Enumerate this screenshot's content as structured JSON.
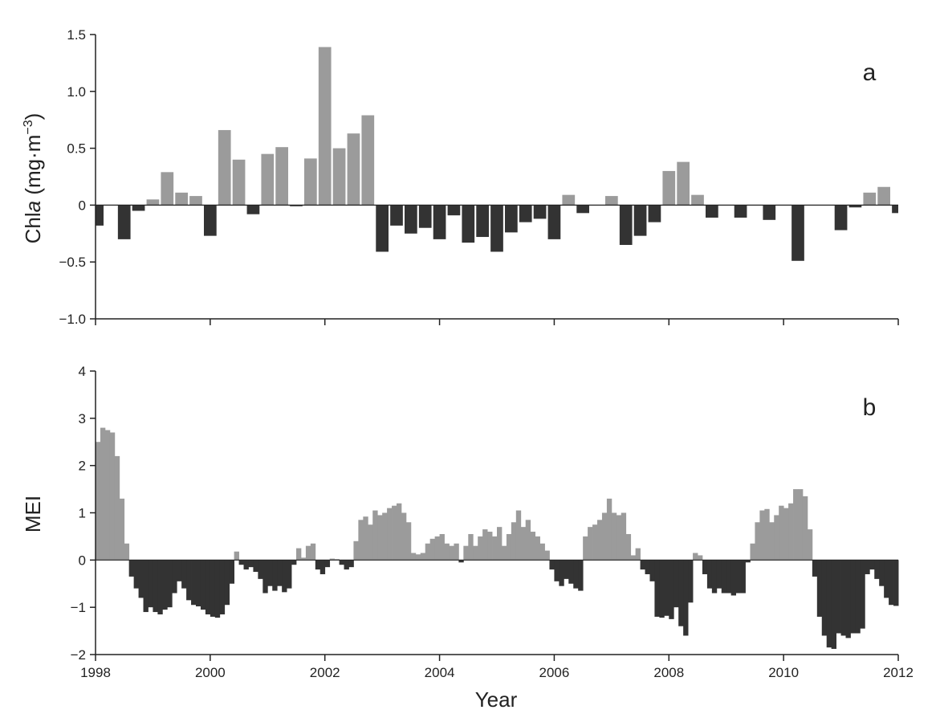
{
  "figure": {
    "xlabel": "Year"
  },
  "colors": {
    "positive": "#9b9b9b",
    "negative": "#333333",
    "axis": "#222222"
  },
  "chart_data": [
    {
      "type": "bar",
      "panel": "a",
      "ylabel": "Chla (mg·m−3)",
      "ylabel_parts": {
        "pre": "Chl",
        "italic": "a",
        "mid": " (mg·m",
        "sup": "−3",
        "post": ")"
      },
      "xlim": [
        1998,
        2012
      ],
      "ylim": [
        -1.0,
        1.5
      ],
      "yticks": [
        -1.0,
        -0.5,
        0,
        0.5,
        1.0,
        1.5
      ],
      "ytick_labels": [
        "−1.0",
        "−0.5",
        "0",
        "0.5",
        "1.0",
        "1.5"
      ],
      "xticks": [
        1998,
        2000,
        2002,
        2004,
        2006,
        2008,
        2010,
        2012
      ],
      "bar_width_years": 0.22,
      "x": [
        1998.03,
        1998.5,
        1998.75,
        1999.0,
        1999.25,
        1999.5,
        1999.75,
        2000.0,
        2000.25,
        2000.5,
        2000.75,
        2001.0,
        2001.25,
        2001.5,
        2001.75,
        2002.0,
        2002.25,
        2002.5,
        2002.75,
        2003.0,
        2003.25,
        2003.5,
        2003.75,
        2004.0,
        2004.25,
        2004.5,
        2004.75,
        2005.0,
        2005.25,
        2005.5,
        2005.75,
        2006.0,
        2006.25,
        2006.5,
        2007.0,
        2007.25,
        2007.5,
        2007.75,
        2008.0,
        2008.25,
        2008.5,
        2008.75,
        2009.25,
        2009.75,
        2010.25,
        2011.0,
        2011.25,
        2011.5,
        2011.75,
        2012.0
      ],
      "values": [
        -0.18,
        -0.3,
        -0.05,
        0.05,
        0.29,
        0.11,
        0.08,
        -0.27,
        0.66,
        0.4,
        -0.08,
        0.45,
        0.51,
        -0.01,
        0.41,
        1.39,
        0.5,
        0.63,
        0.79,
        -0.41,
        -0.18,
        -0.25,
        -0.2,
        -0.3,
        -0.09,
        -0.33,
        -0.28,
        -0.41,
        -0.24,
        -0.15,
        -0.12,
        -0.3,
        0.09,
        -0.07,
        0.08,
        -0.35,
        -0.27,
        -0.15,
        0.3,
        0.38,
        0.09,
        -0.11,
        -0.11,
        -0.13,
        -0.49,
        -0.22,
        -0.02,
        0.11,
        0.16,
        -0.07
      ]
    },
    {
      "type": "bar",
      "panel": "b",
      "ylabel": "MEI",
      "xlabel": "Year",
      "xlim": [
        1998,
        2012
      ],
      "ylim": [
        -2,
        4
      ],
      "yticks": [
        -2,
        -1,
        0,
        1,
        2,
        3,
        4
      ],
      "ytick_labels": [
        "−2",
        "−1",
        "0",
        "1",
        "2",
        "3",
        "4"
      ],
      "xticks": [
        1998,
        2000,
        2002,
        2004,
        2006,
        2008,
        2010,
        2012
      ],
      "xtick_labels": [
        "1998",
        "2000",
        "2002",
        "2004",
        "2006",
        "2008",
        "2010",
        "2012"
      ],
      "x_start": 1998.0,
      "step": 0.0833333,
      "values": [
        2.5,
        2.8,
        2.75,
        2.7,
        2.2,
        1.3,
        0.35,
        -0.35,
        -0.6,
        -0.8,
        -1.1,
        -1.0,
        -1.1,
        -1.15,
        -1.05,
        -1.0,
        -0.7,
        -0.45,
        -0.6,
        -0.85,
        -0.95,
        -0.98,
        -1.05,
        -1.15,
        -1.2,
        -1.22,
        -1.15,
        -0.95,
        -0.5,
        0.18,
        -0.1,
        -0.2,
        -0.15,
        -0.25,
        -0.4,
        -0.7,
        -0.55,
        -0.65,
        -0.55,
        -0.68,
        -0.6,
        -0.1,
        0.25,
        0.05,
        0.3,
        0.35,
        -0.2,
        -0.3,
        -0.15,
        0.03,
        0.02,
        -0.1,
        -0.2,
        -0.15,
        0.4,
        0.85,
        0.92,
        0.75,
        1.05,
        0.95,
        1.0,
        1.1,
        1.15,
        1.2,
        1.0,
        0.8,
        0.15,
        0.12,
        0.15,
        0.35,
        0.45,
        0.5,
        0.55,
        0.35,
        0.3,
        0.35,
        -0.05,
        0.3,
        0.55,
        0.3,
        0.5,
        0.65,
        0.6,
        0.5,
        0.7,
        0.3,
        0.55,
        0.8,
        1.05,
        0.7,
        0.85,
        0.6,
        0.5,
        0.35,
        0.2,
        -0.2,
        -0.45,
        -0.55,
        -0.4,
        -0.5,
        -0.6,
        -0.65,
        0.5,
        0.7,
        0.75,
        0.85,
        1.0,
        1.3,
        1.0,
        0.95,
        1.0,
        0.55,
        0.1,
        0.25,
        -0.2,
        -0.3,
        -0.45,
        -1.2,
        -1.22,
        -1.18,
        -1.25,
        -1.0,
        -1.4,
        -1.6,
        -0.9,
        0.15,
        0.1,
        -0.3,
        -0.6,
        -0.7,
        -0.6,
        -0.7,
        -0.7,
        -0.75,
        -0.7,
        -0.7,
        -0.05,
        0.35,
        0.8,
        1.05,
        1.08,
        0.8,
        0.95,
        1.15,
        1.1,
        1.2,
        1.5,
        1.5,
        1.35,
        0.65,
        -0.35,
        -1.2,
        -1.6,
        -1.85,
        -1.88,
        -1.55,
        -1.6,
        -1.65,
        -1.55,
        -1.55,
        -1.45,
        -0.3,
        -0.2,
        -0.4,
        -0.55,
        -0.8,
        -0.95,
        -0.97,
        -0.97,
        -1.0
      ]
    }
  ]
}
